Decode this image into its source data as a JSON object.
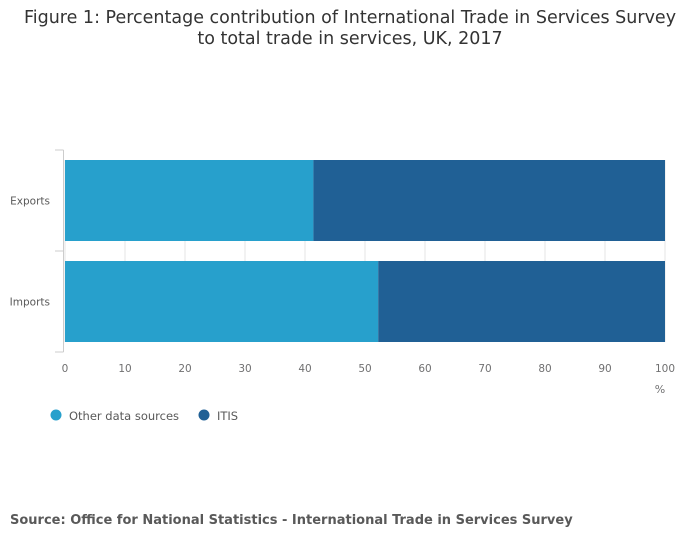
{
  "figure": {
    "title_line1": "Figure 1: Percentage contribution of International Trade in Services Survey",
    "title_line2": "to total trade in services, UK, 2017",
    "source": "Source: Office for National Statistics - International Trade in Services Survey"
  },
  "chart_data": {
    "type": "bar",
    "orientation": "horizontal",
    "stacked": true,
    "categories": [
      "Exports",
      "Imports"
    ],
    "series": [
      {
        "name": "Other data sources",
        "values": [
          41.4,
          52.2
        ],
        "color": "#27a0cc"
      },
      {
        "name": "ITIS",
        "values": [
          58.6,
          47.8
        ],
        "color": "#206095"
      }
    ],
    "xlabel": "%",
    "xlim": [
      0,
      100
    ],
    "xticks": [
      "0",
      "10",
      "20",
      "30",
      "40",
      "50",
      "60",
      "70",
      "80",
      "90",
      "100"
    ],
    "grid": true,
    "legend_position": "bottom-left"
  }
}
